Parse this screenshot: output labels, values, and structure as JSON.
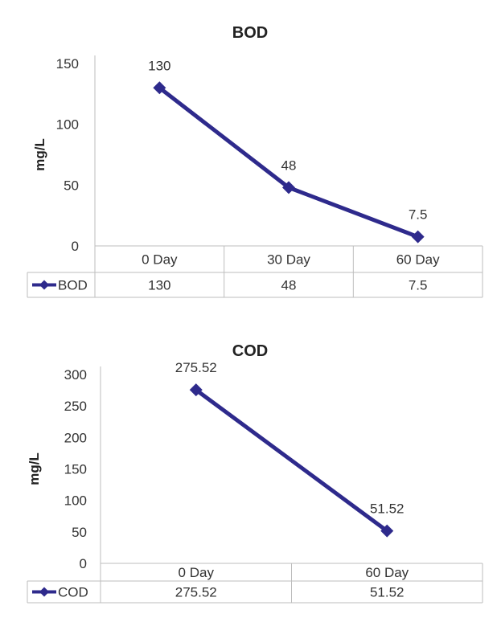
{
  "chart_data": [
    {
      "type": "line",
      "title": "BOD",
      "ylabel": "mg/L",
      "xlabel": "",
      "ylim": [
        0,
        150
      ],
      "yticks": [
        0,
        50,
        100,
        150
      ],
      "categories": [
        "0 Day",
        "30 Day",
        "60 Day"
      ],
      "series": [
        {
          "name": "BOD",
          "values": [
            130,
            48,
            7.5
          ],
          "labels": [
            "130",
            "48",
            "7.5"
          ]
        }
      ],
      "grid": false,
      "legend": "data-table-left",
      "color": "#2e2a8c"
    },
    {
      "type": "line",
      "title": "COD",
      "ylabel": "mg/L",
      "xlabel": "",
      "ylim": [
        0,
        300
      ],
      "yticks": [
        0,
        50,
        100,
        150,
        200,
        250,
        300
      ],
      "categories": [
        "0 Day",
        "60 Day"
      ],
      "series": [
        {
          "name": "COD",
          "values": [
            275.52,
            51.52
          ],
          "labels": [
            "275.52",
            "51.52"
          ]
        }
      ],
      "grid": false,
      "legend": "data-table-left",
      "color": "#2e2a8c"
    }
  ]
}
